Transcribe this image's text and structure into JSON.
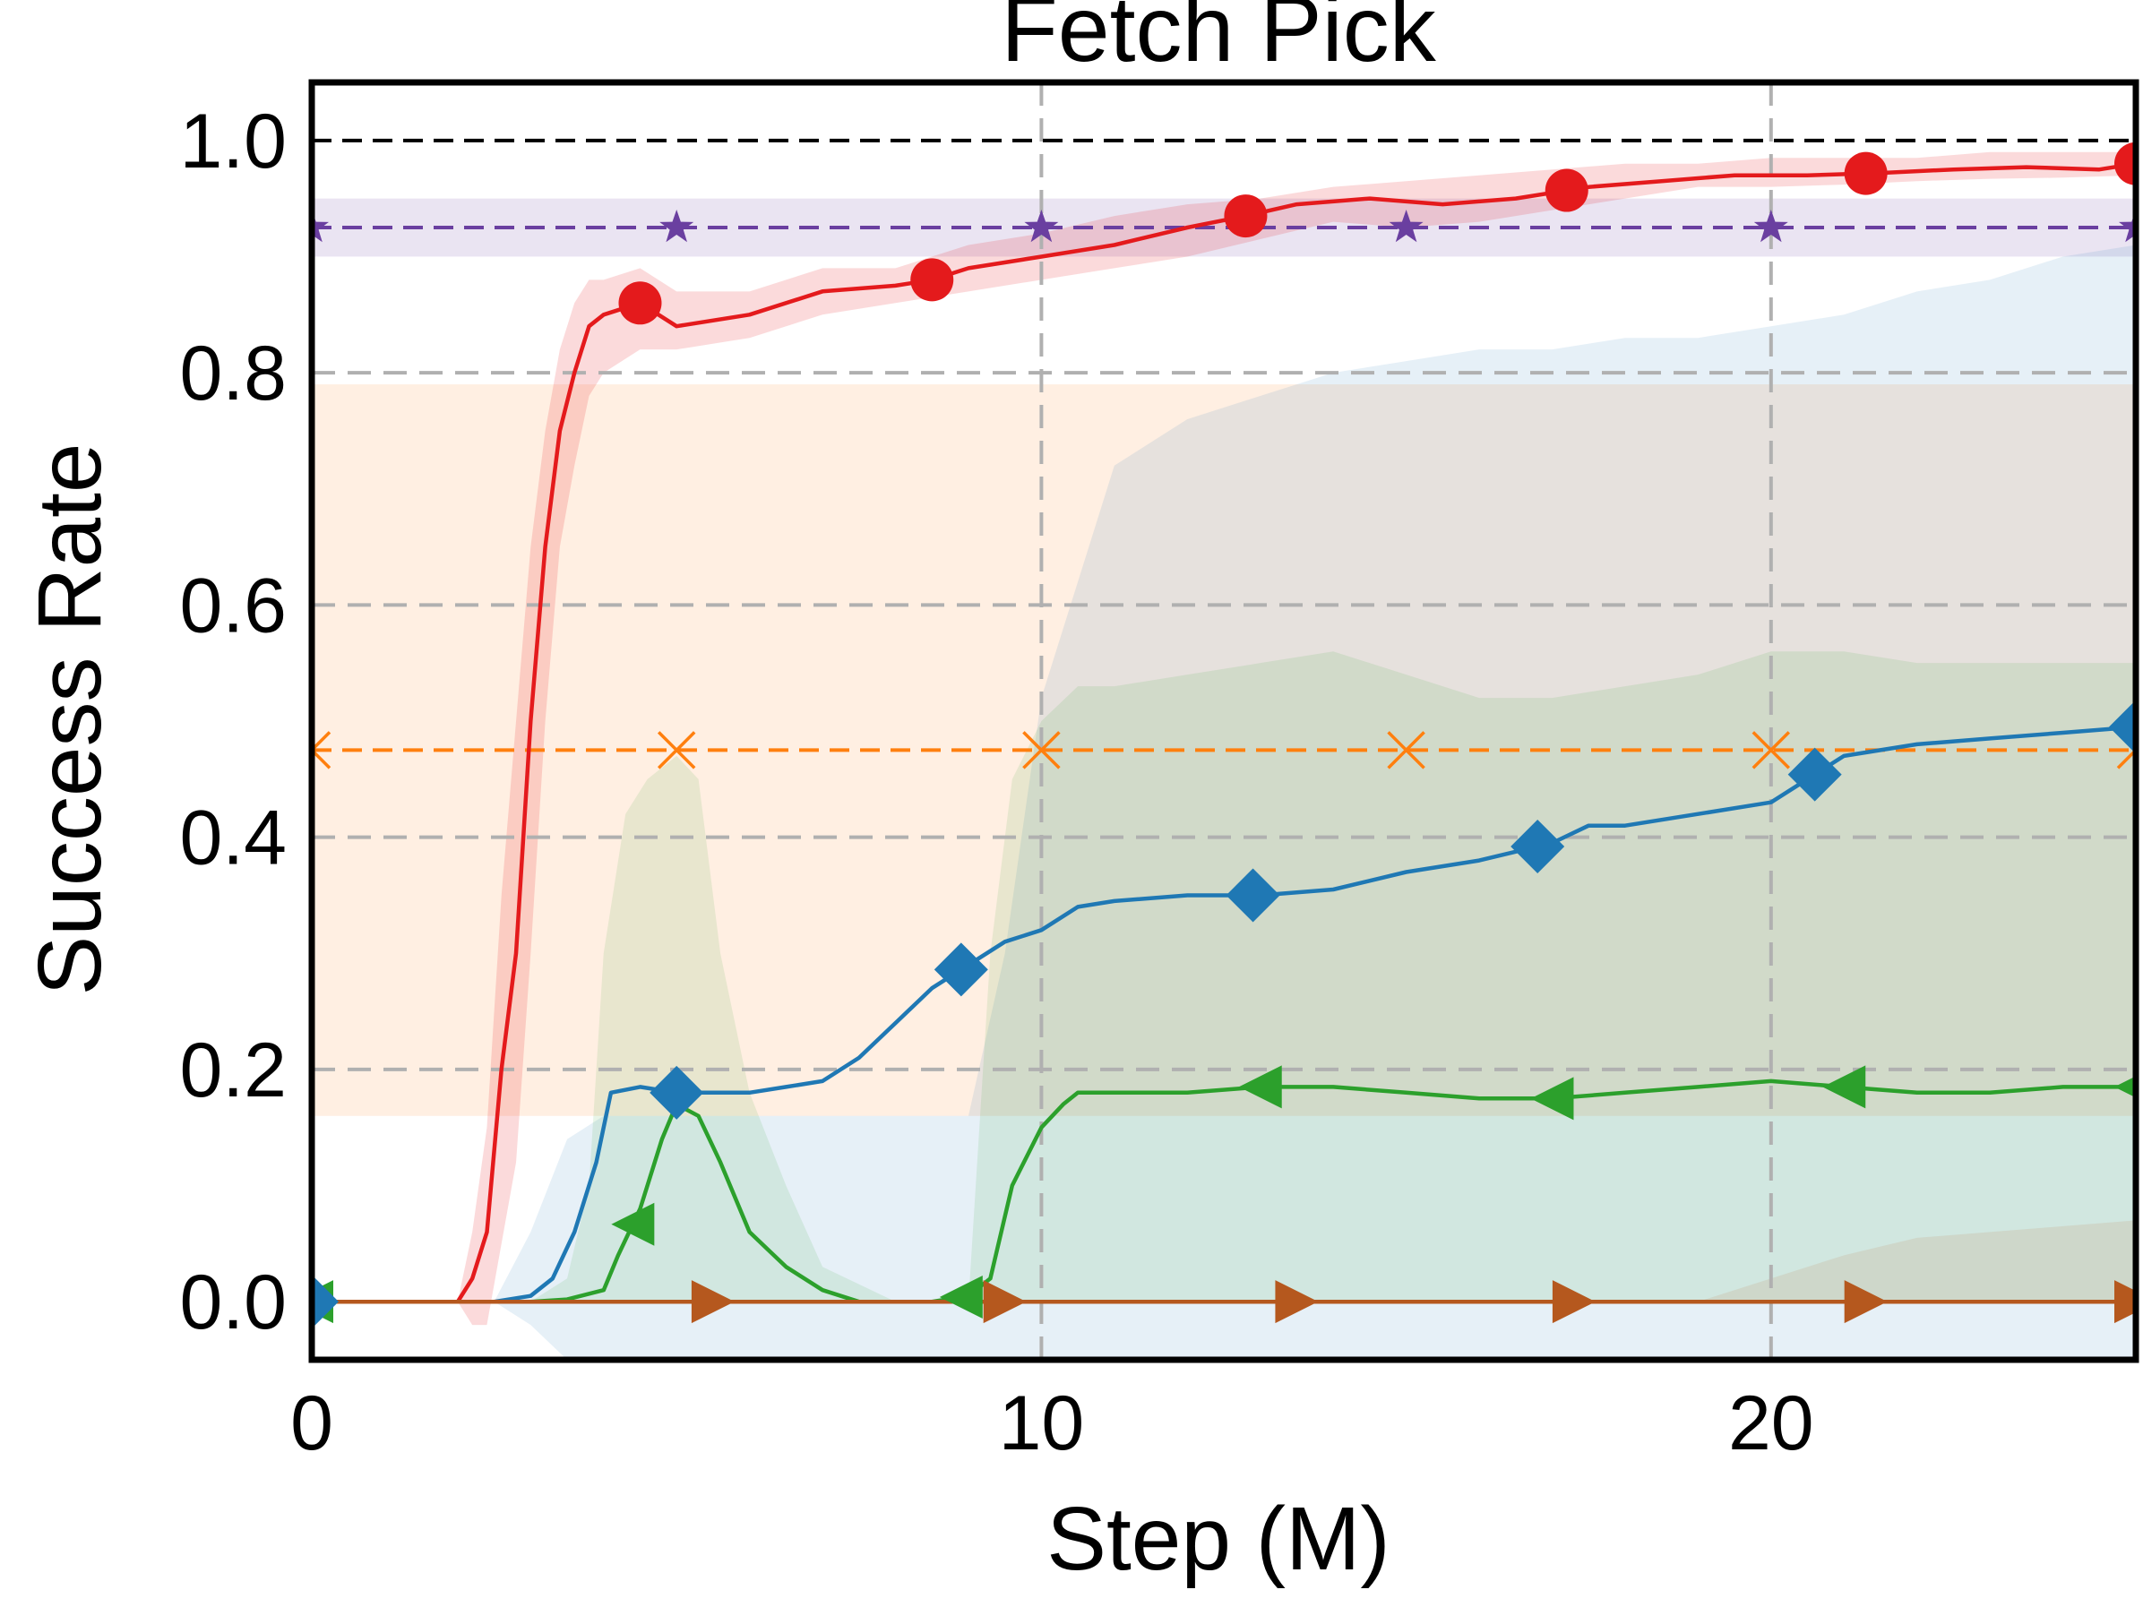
{
  "chart_data": {
    "type": "line",
    "title": "Fetch Pick",
    "xlabel": "Step (M)",
    "ylabel": "Success Rate",
    "xlim": [
      0,
      25
    ],
    "ylim": [
      -0.05,
      1.05
    ],
    "xticks": [
      0,
      10,
      20
    ],
    "xtick_labels": [
      "0",
      "10",
      "20"
    ],
    "yticks": [
      0.0,
      0.2,
      0.4,
      0.6,
      0.8,
      1.0
    ],
    "ytick_labels": [
      "0.0",
      "0.2",
      "0.4",
      "0.6",
      "0.8",
      "1.0"
    ],
    "grid": true,
    "legend": "none",
    "reference_lines": [
      {
        "y": 1.0,
        "color": "#000000",
        "style": "dashed"
      },
      {
        "y": 0.925,
        "color": "#6a3fa0",
        "style": "dashed",
        "marker": "star",
        "band": [
          0.9,
          0.95
        ],
        "marker_x": [
          0,
          5,
          10,
          15,
          20,
          25
        ]
      },
      {
        "y": 0.475,
        "color": "#ff7f0e",
        "style": "dashed",
        "marker": "x",
        "band": [
          0.16,
          0.79
        ],
        "marker_x": [
          0,
          5,
          10,
          15,
          20,
          25
        ]
      }
    ],
    "series": [
      {
        "color": "#e41a1c",
        "marker": "circle",
        "x": [
          0,
          2.0,
          2.2,
          2.4,
          2.6,
          2.8,
          3.0,
          3.2,
          3.4,
          3.6,
          3.8,
          4.0,
          4.5,
          5.0,
          6.0,
          7.0,
          8.0,
          8.5,
          9.0,
          10.0,
          11.0,
          12.0,
          12.8,
          13.5,
          14.5,
          15.5,
          16.5,
          17.5,
          18.5,
          19.5,
          20.5,
          21.5,
          22.5,
          23.5,
          24.5,
          25.0
        ],
        "y": [
          0,
          0,
          0.02,
          0.06,
          0.2,
          0.3,
          0.5,
          0.65,
          0.75,
          0.8,
          0.84,
          0.85,
          0.86,
          0.84,
          0.85,
          0.87,
          0.875,
          0.88,
          0.89,
          0.9,
          0.91,
          0.925,
          0.935,
          0.945,
          0.95,
          0.945,
          0.95,
          0.96,
          0.965,
          0.97,
          0.97,
          0.972,
          0.975,
          0.977,
          0.975,
          0.98
        ],
        "band": [
          [
            0,
            0,
            0
          ],
          [
            2.0,
            0,
            0
          ],
          [
            2.2,
            -0.02,
            0.06
          ],
          [
            2.4,
            -0.02,
            0.15
          ],
          [
            2.6,
            0.05,
            0.35
          ],
          [
            2.8,
            0.12,
            0.5
          ],
          [
            3.0,
            0.3,
            0.65
          ],
          [
            3.2,
            0.5,
            0.75
          ],
          [
            3.4,
            0.65,
            0.82
          ],
          [
            3.6,
            0.72,
            0.86
          ],
          [
            3.8,
            0.78,
            0.88
          ],
          [
            4.0,
            0.8,
            0.88
          ],
          [
            4.5,
            0.82,
            0.89
          ],
          [
            5.0,
            0.82,
            0.87
          ],
          [
            6.0,
            0.83,
            0.87
          ],
          [
            7.0,
            0.85,
            0.89
          ],
          [
            8.0,
            0.86,
            0.89
          ],
          [
            9.0,
            0.87,
            0.91
          ],
          [
            10.0,
            0.88,
            0.92
          ],
          [
            11.0,
            0.89,
            0.935
          ],
          [
            12.0,
            0.9,
            0.945
          ],
          [
            13.0,
            0.915,
            0.95
          ],
          [
            14.0,
            0.93,
            0.96
          ],
          [
            15.0,
            0.925,
            0.965
          ],
          [
            16.0,
            0.93,
            0.97
          ],
          [
            17.0,
            0.94,
            0.975
          ],
          [
            18.0,
            0.95,
            0.98
          ],
          [
            19.0,
            0.96,
            0.98
          ],
          [
            20.0,
            0.96,
            0.985
          ],
          [
            21.0,
            0.962,
            0.985
          ],
          [
            22.0,
            0.965,
            0.985
          ],
          [
            23.0,
            0.967,
            0.99
          ],
          [
            24.0,
            0.968,
            0.99
          ],
          [
            25.0,
            0.97,
            0.99
          ]
        ],
        "marker_x": [
          4.5,
          8.5,
          12.8,
          17.2,
          21.3,
          25.0
        ]
      },
      {
        "color": "#1f78b4",
        "marker": "diamond",
        "x": [
          0,
          2.5,
          3.0,
          3.3,
          3.6,
          3.9,
          4.1,
          4.5,
          5.0,
          5.5,
          6.0,
          6.5,
          7.0,
          7.5,
          8.0,
          8.5,
          9.0,
          9.5,
          10.0,
          10.5,
          11.0,
          12.0,
          13.0,
          14.0,
          15.0,
          16.0,
          17.0,
          17.5,
          18.0,
          19.0,
          20.0,
          20.5,
          21.0,
          22.0,
          23.0,
          24.0,
          25.0
        ],
        "y": [
          0,
          0,
          0.005,
          0.02,
          0.06,
          0.12,
          0.18,
          0.185,
          0.18,
          0.18,
          0.18,
          0.185,
          0.19,
          0.21,
          0.24,
          0.27,
          0.29,
          0.31,
          0.32,
          0.34,
          0.345,
          0.35,
          0.35,
          0.355,
          0.37,
          0.38,
          0.395,
          0.41,
          0.41,
          0.42,
          0.43,
          0.45,
          0.47,
          0.48,
          0.485,
          0.49,
          0.495
        ],
        "band": [
          [
            0,
            0,
            0
          ],
          [
            2.5,
            0,
            0
          ],
          [
            3.0,
            -0.02,
            0.06
          ],
          [
            3.5,
            -0.05,
            0.14
          ],
          [
            4.0,
            -0.05,
            0.16
          ],
          [
            5.0,
            -0.05,
            0.16
          ],
          [
            7.0,
            -0.05,
            0.16
          ],
          [
            9.0,
            -0.05,
            0.16
          ],
          [
            9.5,
            -0.05,
            0.3
          ],
          [
            10.0,
            -0.05,
            0.52
          ],
          [
            11.0,
            -0.05,
            0.72
          ],
          [
            12.0,
            -0.05,
            0.76
          ],
          [
            13.0,
            -0.05,
            0.78
          ],
          [
            14.0,
            -0.05,
            0.8
          ],
          [
            15.0,
            -0.05,
            0.81
          ],
          [
            16.0,
            -0.05,
            0.82
          ],
          [
            17.0,
            -0.05,
            0.82
          ],
          [
            18.0,
            -0.05,
            0.83
          ],
          [
            19.0,
            -0.05,
            0.83
          ],
          [
            20.0,
            -0.05,
            0.84
          ],
          [
            21.0,
            -0.05,
            0.85
          ],
          [
            22.0,
            -0.05,
            0.87
          ],
          [
            23.0,
            -0.05,
            0.88
          ],
          [
            24.0,
            -0.05,
            0.9
          ],
          [
            25.0,
            -0.05,
            0.91
          ]
        ],
        "marker_x": [
          0,
          5.0,
          8.9,
          12.9,
          16.8,
          20.6,
          25.0
        ]
      },
      {
        "color": "#2ca02c",
        "marker": "triangle-left",
        "x": [
          0,
          3.0,
          3.5,
          4.0,
          4.2,
          4.5,
          4.8,
          5.0,
          5.3,
          5.6,
          6.0,
          6.5,
          7.0,
          7.5,
          8.0,
          8.5,
          9.0,
          9.3,
          9.6,
          10.0,
          10.3,
          10.5,
          11.0,
          12.0,
          13.0,
          14.0,
          15.0,
          16.0,
          17.0,
          18.0,
          19.0,
          20.0,
          21.0,
          22.0,
          23.0,
          24.0,
          25.0
        ],
        "y": [
          0,
          0,
          0.002,
          0.01,
          0.04,
          0.08,
          0.14,
          0.17,
          0.16,
          0.12,
          0.06,
          0.03,
          0.01,
          0.0,
          0.0,
          0.0,
          0.005,
          0.02,
          0.1,
          0.15,
          0.17,
          0.18,
          0.18,
          0.18,
          0.185,
          0.185,
          0.18,
          0.175,
          0.175,
          0.18,
          0.185,
          0.19,
          0.185,
          0.18,
          0.18,
          0.185,
          0.185
        ],
        "band": [
          [
            0,
            0,
            0
          ],
          [
            3.0,
            0,
            0
          ],
          [
            3.5,
            0,
            0.02
          ],
          [
            3.8,
            0,
            0.1
          ],
          [
            4.0,
            0,
            0.3
          ],
          [
            4.3,
            0,
            0.42
          ],
          [
            4.6,
            0,
            0.45
          ],
          [
            5.0,
            0,
            0.47
          ],
          [
            5.3,
            0,
            0.45
          ],
          [
            5.6,
            0,
            0.3
          ],
          [
            6.0,
            0,
            0.18
          ],
          [
            6.5,
            0,
            0.1
          ],
          [
            7.0,
            0,
            0.03
          ],
          [
            8.0,
            0,
            0
          ],
          [
            9.0,
            0,
            0
          ],
          [
            9.3,
            0,
            0.3
          ],
          [
            9.6,
            0,
            0.45
          ],
          [
            10.0,
            0,
            0.5
          ],
          [
            10.5,
            0,
            0.53
          ],
          [
            11.0,
            0,
            0.53
          ],
          [
            12.0,
            0,
            0.54
          ],
          [
            13.0,
            0,
            0.55
          ],
          [
            14.0,
            0,
            0.56
          ],
          [
            15.0,
            0,
            0.54
          ],
          [
            16.0,
            0,
            0.52
          ],
          [
            17.0,
            0,
            0.52
          ],
          [
            18.0,
            0,
            0.53
          ],
          [
            19.0,
            0,
            0.54
          ],
          [
            20.0,
            0,
            0.56
          ],
          [
            21.0,
            0,
            0.56
          ],
          [
            22.0,
            0,
            0.55
          ],
          [
            23.0,
            0,
            0.55
          ],
          [
            24.0,
            0,
            0.55
          ],
          [
            25.0,
            0,
            0.55
          ]
        ],
        "marker_x": [
          0,
          4.4,
          8.9,
          13.0,
          17.0,
          21.0,
          25.0
        ]
      },
      {
        "color": "#b5581e",
        "marker": "triangle-right",
        "x": [
          0,
          25
        ],
        "y": [
          0,
          0
        ],
        "band": [
          [
            0,
            0,
            0
          ],
          [
            19.0,
            0,
            0
          ],
          [
            20.0,
            0,
            0.02
          ],
          [
            21.0,
            0,
            0.04
          ],
          [
            22.0,
            0,
            0.055
          ],
          [
            23.0,
            0,
            0.06
          ],
          [
            24.0,
            0,
            0.065
          ],
          [
            25.0,
            0,
            0.07
          ]
        ],
        "marker_x": [
          5.5,
          9.5,
          13.5,
          17.3,
          21.3,
          25.0
        ]
      }
    ]
  }
}
